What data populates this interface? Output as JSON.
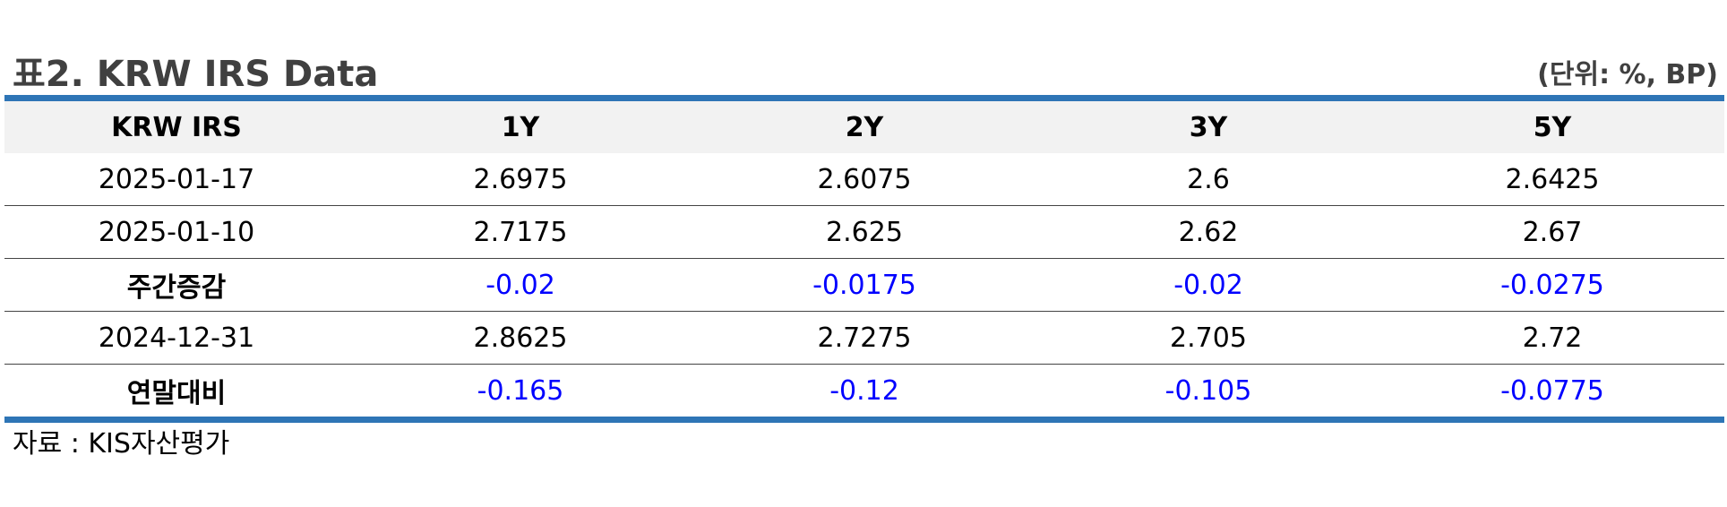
{
  "title": "표2. KRW IRS Data",
  "unit": "(단위: %, BP)",
  "colors": {
    "rule": "#2e75b6",
    "header_bg": "#f2f2f2",
    "change_text": "#0000ff"
  },
  "table": {
    "headers": [
      "KRW IRS",
      "1Y",
      "2Y",
      "3Y",
      "5Y"
    ],
    "rows": [
      {
        "label": "2025-01-17",
        "values": [
          "2.6975",
          "2.6075",
          "2.6",
          "2.6425"
        ]
      },
      {
        "label": "2025-01-10",
        "values": [
          "2.7175",
          "2.625",
          "2.62",
          "2.67"
        ]
      },
      {
        "label": "주간증감",
        "values": [
          "-0.02",
          "-0.0175",
          "-0.02",
          "-0.0275"
        ]
      },
      {
        "label": "2024-12-31",
        "values": [
          "2.8625",
          "2.7275",
          "2.705",
          "2.72"
        ]
      },
      {
        "label": "연말대비",
        "values": [
          "-0.165",
          "-0.12",
          "-0.105",
          "-0.0775"
        ]
      }
    ]
  },
  "source": "자료 : KIS자산평가"
}
